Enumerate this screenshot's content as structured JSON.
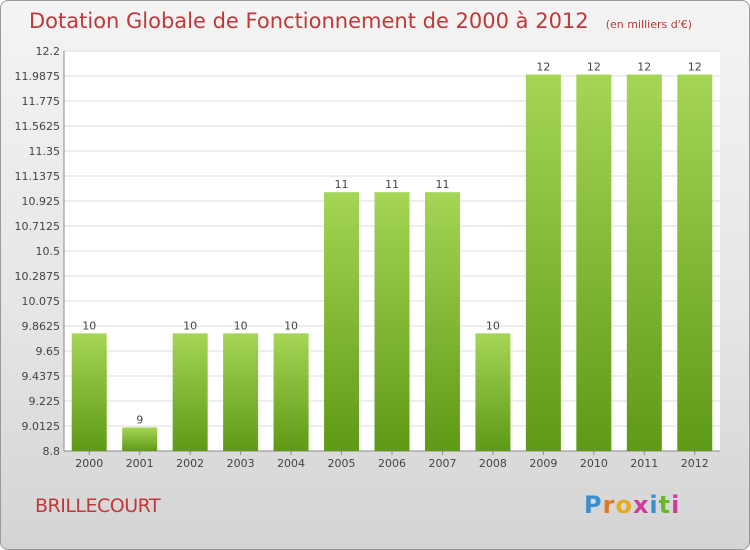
{
  "title": "Dotation Globale de Fonctionnement de 2000 à 2012",
  "subtitle": "(en milliers d'€)",
  "location": "BRILLECOURT",
  "logo": "Proxiti",
  "colors": {
    "title": "#c03838",
    "bar_light": "#a5d555",
    "bar_dark": "#5e9a16",
    "logo_letters": [
      "#3a8fd0",
      "#e07a1f",
      "#e0ae1f",
      "#d03a9a",
      "#3a8fd0",
      "#6ab82a",
      "#d03a9a"
    ]
  },
  "chart_data": {
    "type": "bar",
    "categories": [
      "2000",
      "2001",
      "2002",
      "2003",
      "2004",
      "2005",
      "2006",
      "2007",
      "2008",
      "2009",
      "2010",
      "2011",
      "2012"
    ],
    "values": [
      10,
      9,
      10,
      10,
      10,
      11,
      11,
      11,
      10,
      12,
      12,
      12,
      12
    ],
    "plotted_values": [
      9.8,
      9.0,
      9.8,
      9.8,
      9.8,
      11.0,
      11.0,
      11.0,
      9.8,
      12.0,
      12.0,
      12.0,
      12.0
    ],
    "labels": [
      "10",
      "9",
      "10",
      "10",
      "10",
      "11",
      "11",
      "11",
      "10",
      "12",
      "12",
      "12",
      "12"
    ],
    "ylim": [
      8.8,
      12.2
    ],
    "yticks": [
      "12.2",
      "11.9875",
      "11.775",
      "11.5625",
      "11.35",
      "11.1375",
      "10.925",
      "10.7125",
      "10.5",
      "10.2875",
      "10.075",
      "9.8625",
      "9.65",
      "9.4375",
      "9.225",
      "9.0125",
      "8.8"
    ],
    "grid": true,
    "xlabel": "",
    "ylabel": ""
  }
}
